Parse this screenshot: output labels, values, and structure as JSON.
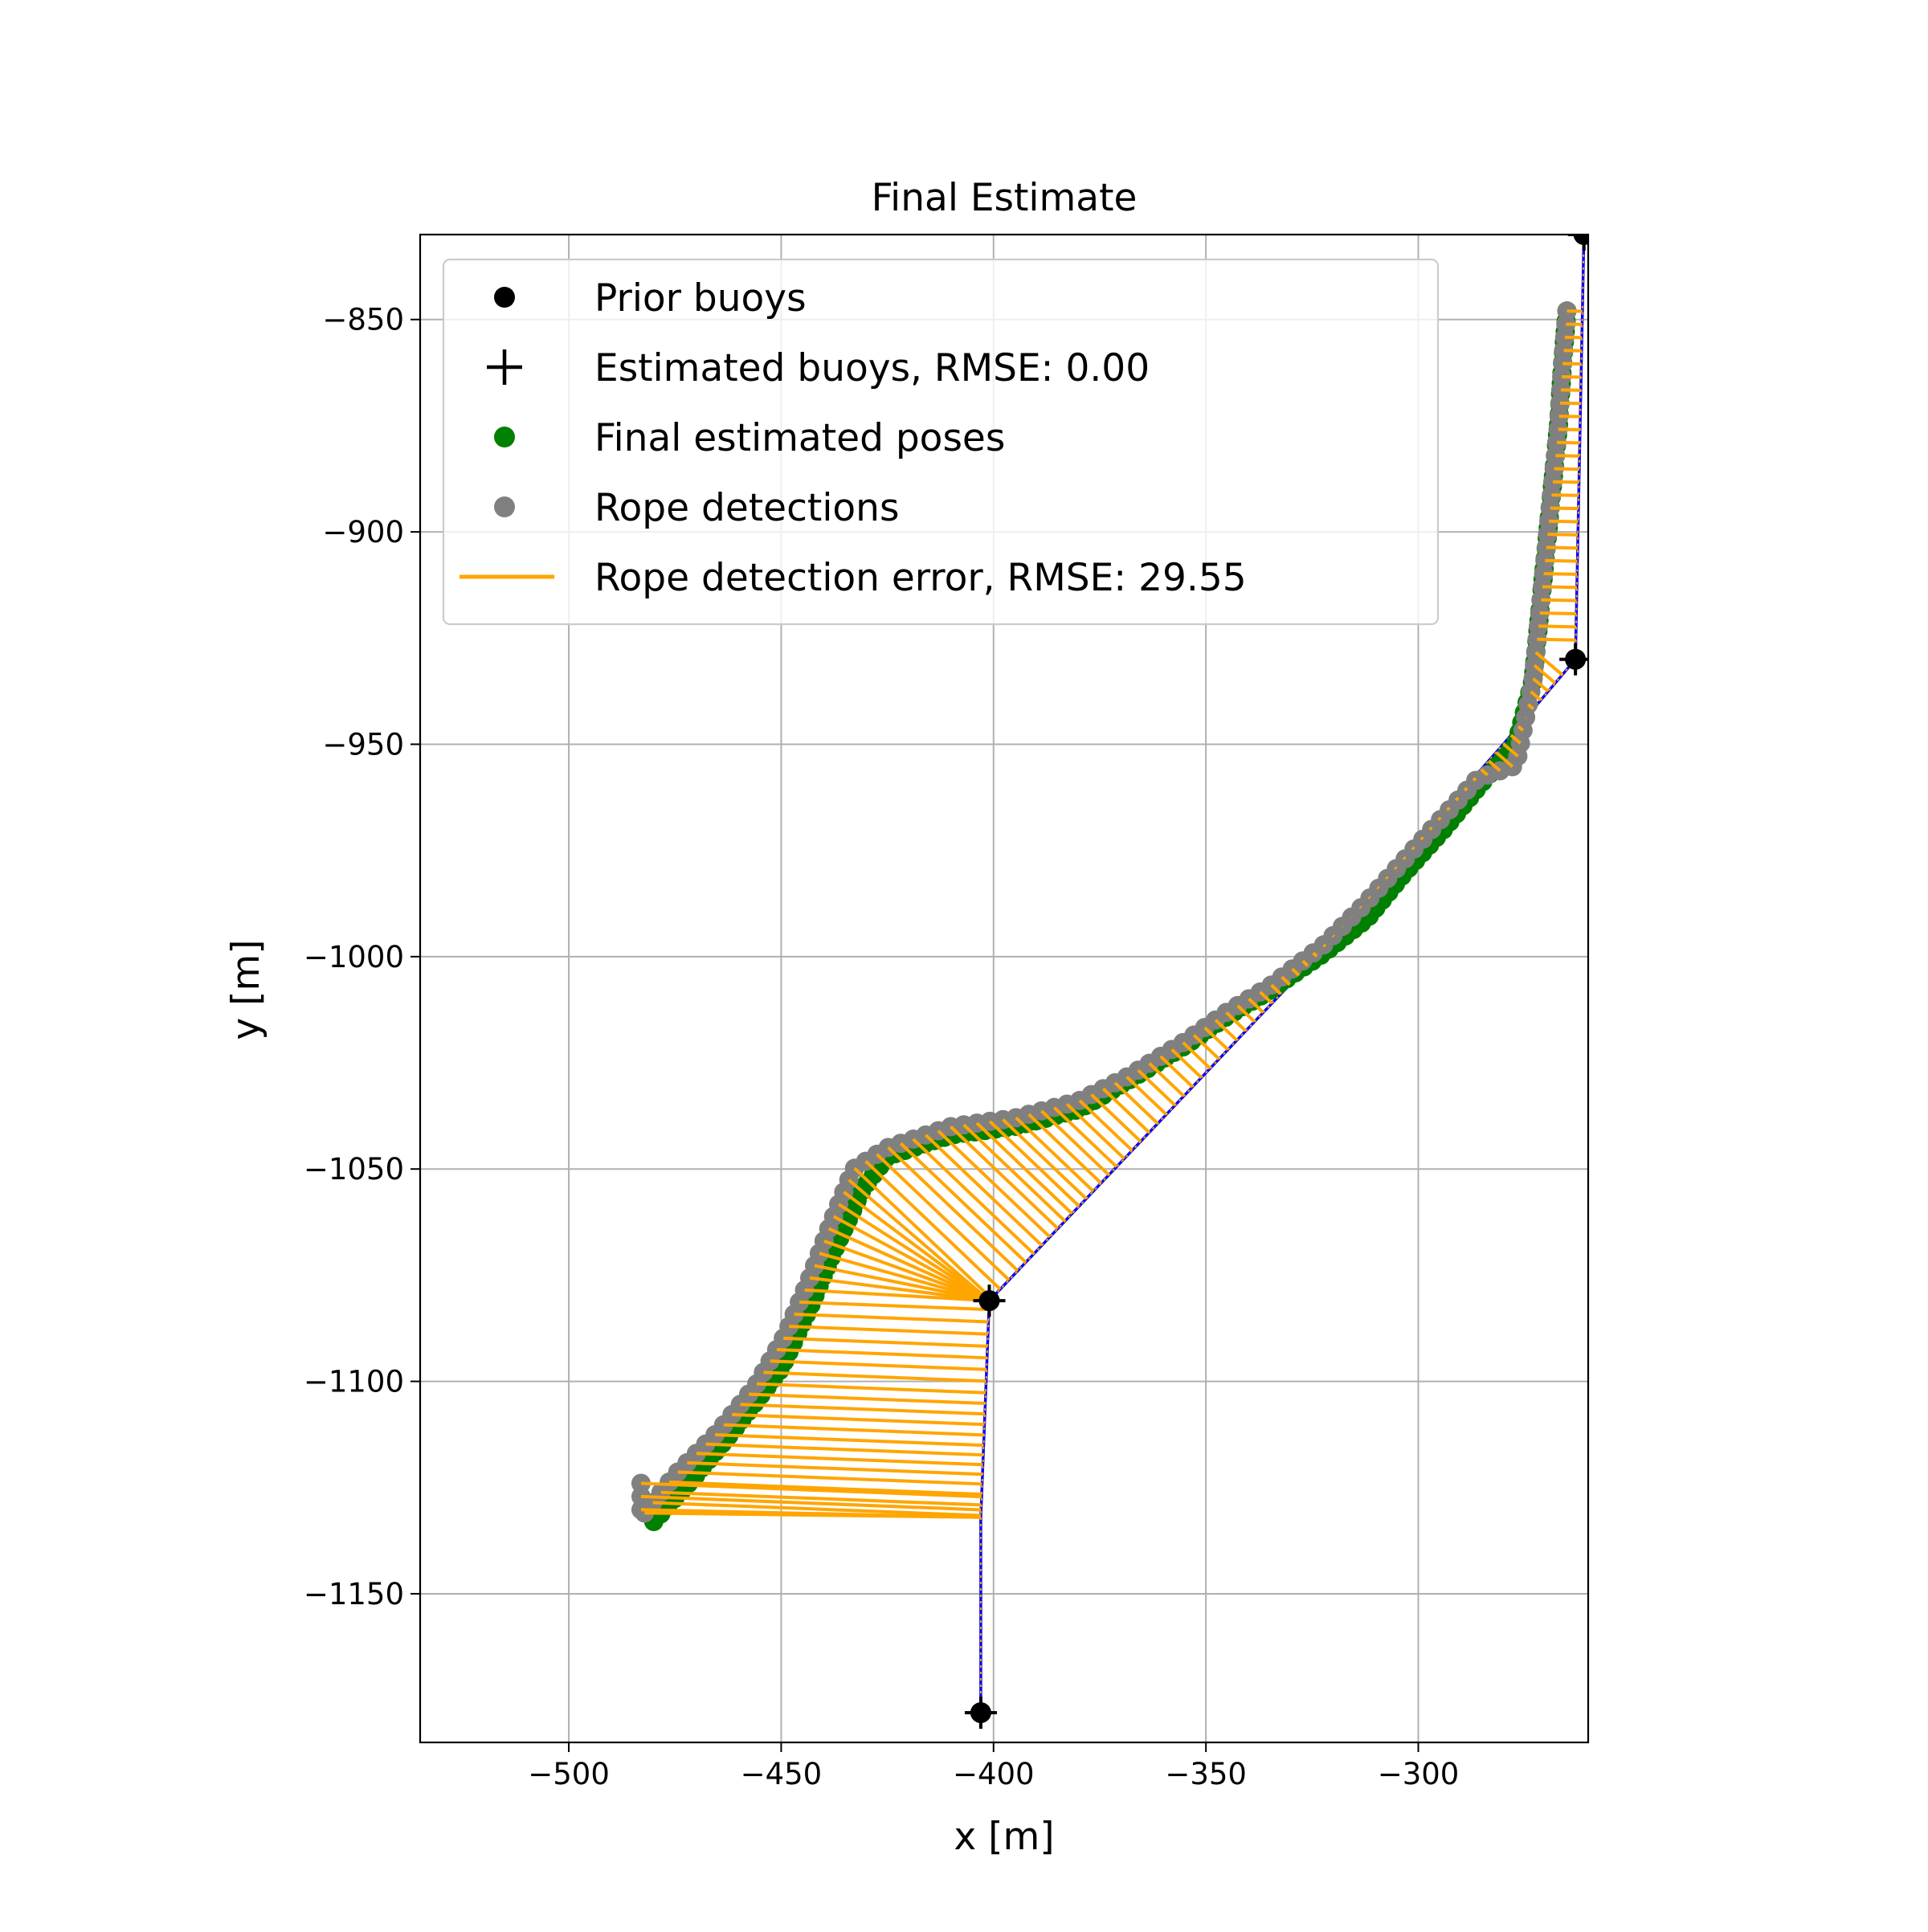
{
  "chart_data": {
    "type": "scatter",
    "title": "Final Estimate",
    "xlabel": "x [m]",
    "ylabel": "y [m]",
    "xlim": [
      -535,
      -260
    ],
    "ylim": [
      -1185,
      -830
    ],
    "xticks": [
      -500,
      -450,
      -400,
      -350,
      -300
    ],
    "yticks": [
      -850,
      -900,
      -950,
      -1000,
      -1050,
      -1100,
      -1150
    ],
    "xtick_labels": [
      "−500",
      "−450",
      "−400",
      "−350",
      "−300"
    ],
    "ytick_labels": [
      "−850",
      "−900",
      "−950",
      "−1000",
      "−1050",
      "−1100",
      "−1150"
    ],
    "grid": true,
    "legend_placement": "top-left",
    "legend": [
      {
        "label": "Prior buoys",
        "marker": "dot",
        "color": "#000000"
      },
      {
        "label": "Estimated buoys, RMSE: 0.00",
        "marker": "plus",
        "color": "#000000"
      },
      {
        "label": "Final estimated poses",
        "marker": "dot",
        "color": "#008000"
      },
      {
        "label": "Rope detections",
        "marker": "dot",
        "color": "#808080"
      },
      {
        "label": "Rope detection error, RMSE: 29.55",
        "marker": "line",
        "color": "#FFA500"
      }
    ],
    "prior_buoys": [
      [
        -403,
        -1178
      ],
      [
        -401,
        -1081
      ],
      [
        -263,
        -930
      ],
      [
        -261,
        -830
      ]
    ],
    "estimated_buoys": [
      [
        -403,
        -1178
      ],
      [
        -401,
        -1081
      ],
      [
        -263,
        -930
      ],
      [
        -261,
        -830
      ]
    ],
    "rope_line": [
      [
        -403,
        -1178
      ],
      [
        -403,
        -1132
      ],
      [
        -401,
        -1081
      ],
      [
        -324,
        -1000
      ],
      [
        -280,
        -950
      ],
      [
        -263,
        -930
      ],
      [
        -261,
        -830
      ]
    ],
    "pose_path": [
      [
        -480,
        -1133
      ],
      [
        -470,
        -1122
      ],
      [
        -460,
        -1110
      ],
      [
        -450,
        -1097
      ],
      [
        -443,
        -1082
      ],
      [
        -437,
        -1068
      ],
      [
        -431,
        -1055
      ],
      [
        -425,
        -1047
      ],
      [
        -410,
        -1042
      ],
      [
        -395,
        -1040
      ],
      [
        -380,
        -1036
      ],
      [
        -368,
        -1029
      ],
      [
        -355,
        -1021
      ],
      [
        -345,
        -1014
      ],
      [
        -335,
        -1008
      ],
      [
        -322,
        -999
      ],
      [
        -312,
        -991
      ],
      [
        -303,
        -980
      ],
      [
        -294,
        -970
      ],
      [
        -285,
        -959
      ],
      [
        -277,
        -950
      ],
      [
        -273,
        -935
      ],
      [
        -271,
        -915
      ],
      [
        -269,
        -895
      ],
      [
        -267,
        -875
      ],
      [
        -266,
        -860
      ],
      [
        -265,
        -848
      ]
    ],
    "rope_path": [
      [
        -483,
        -1124
      ],
      [
        -483,
        -1132
      ],
      [
        -475,
        -1122
      ],
      [
        -465,
        -1112
      ],
      [
        -456,
        -1101
      ],
      [
        -449,
        -1089
      ],
      [
        -443,
        -1075
      ],
      [
        -438,
        -1062
      ],
      [
        -433,
        -1050
      ],
      [
        -425,
        -1045
      ],
      [
        -410,
        -1040
      ],
      [
        -395,
        -1038
      ],
      [
        -380,
        -1034
      ],
      [
        -368,
        -1028
      ],
      [
        -355,
        -1020
      ],
      [
        -345,
        -1013
      ],
      [
        -335,
        -1007
      ],
      [
        -322,
        -997
      ],
      [
        -313,
        -988
      ],
      [
        -304,
        -978
      ],
      [
        -295,
        -968
      ],
      [
        -286,
        -958
      ],
      [
        -277,
        -955
      ],
      [
        -273,
        -935
      ],
      [
        -271,
        -915
      ],
      [
        -269,
        -895
      ],
      [
        -267,
        -875
      ],
      [
        -266,
        -860
      ],
      [
        -265,
        -848
      ]
    ]
  }
}
